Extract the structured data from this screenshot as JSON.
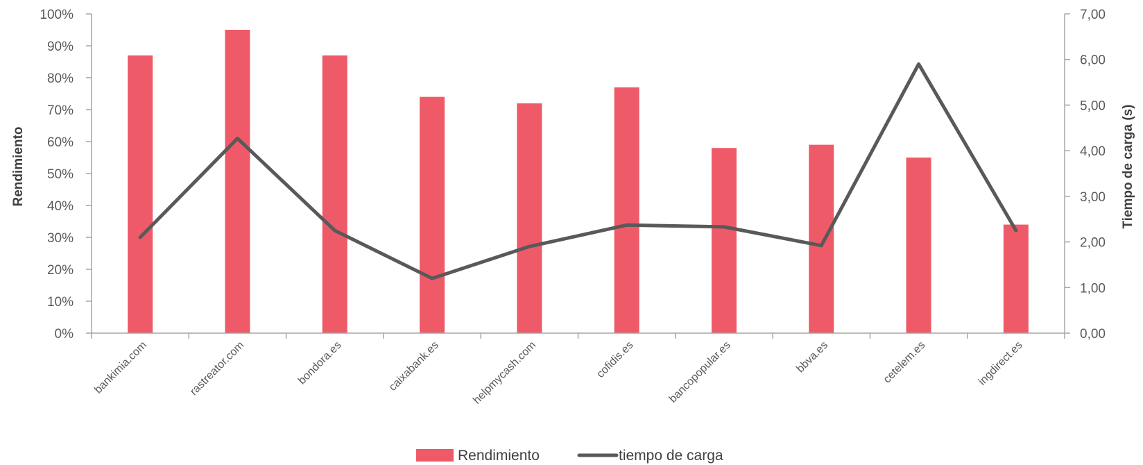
{
  "chart_data": {
    "type": "bar",
    "categories": [
      "bankimia.com",
      "rastreator.com",
      "bondora.es",
      "caixabank.es",
      "helpmycash.com",
      "cofidis.es",
      "bancopopular.es",
      "bbva.es",
      "cetelem.es",
      "ingdirect.es"
    ],
    "series": [
      {
        "name": "Rendimiento",
        "type": "bar",
        "axis": "left",
        "color": "#EF5A69",
        "values": [
          87,
          95,
          87,
          74,
          72,
          77,
          58,
          59,
          55,
          34
        ]
      },
      {
        "name": "tiempo de carga",
        "type": "line",
        "axis": "right",
        "color": "#595959",
        "values": [
          2.1,
          4.27,
          2.25,
          1.2,
          1.9,
          2.37,
          2.33,
          1.92,
          5.9,
          2.25
        ]
      }
    ],
    "ylabel": "Rendimiento",
    "ylabel_right": "Tiempo de carga (s)",
    "ylim": [
      0,
      100
    ],
    "ylim_right": [
      0,
      7
    ],
    "yticks": [
      "0%",
      "10%",
      "20%",
      "30%",
      "40%",
      "50%",
      "60%",
      "70%",
      "80%",
      "90%",
      "100%"
    ],
    "yticks_right": [
      "0,00",
      "1,00",
      "2,00",
      "3,00",
      "4,00",
      "5,00",
      "6,00",
      "7,00"
    ],
    "legend_position": "bottom",
    "grid": false
  }
}
